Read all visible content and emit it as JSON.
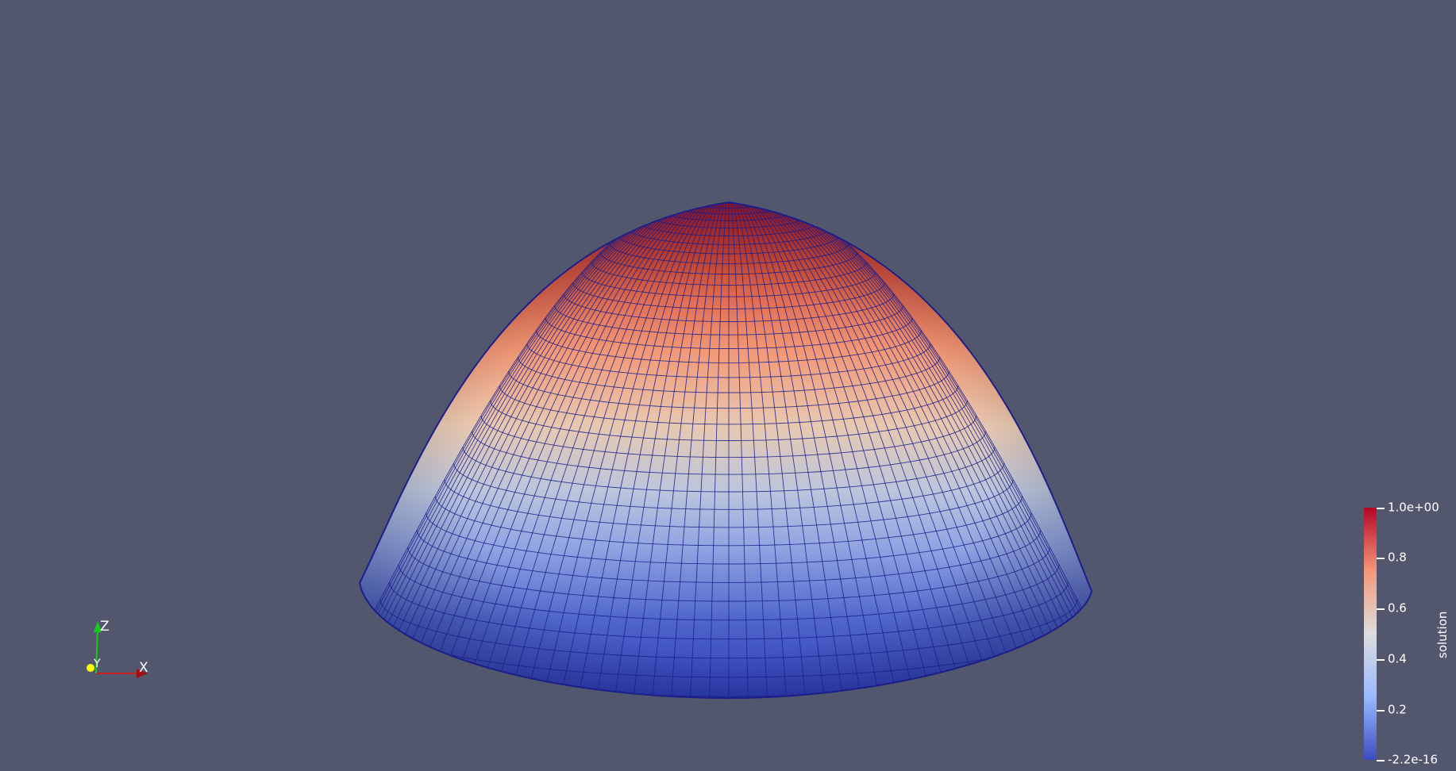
{
  "render_view": {
    "background_color": "#52576e",
    "surface_colormap": [
      "#3b4cc0",
      "#b5cdfa",
      "#dddddd",
      "#f4987a",
      "#b40426"
    ],
    "mesh_edge_color": "#1a1f8a"
  },
  "color_legend": {
    "title": "solution",
    "ticks": [
      "1.0e+00",
      "0.8",
      "0.6",
      "0.4",
      "0.2",
      "-2.2e-16"
    ],
    "range": [
      -2.2e-16,
      1.0
    ]
  },
  "orientation_axes": {
    "z_label": "Z",
    "y_label": "Y",
    "x_label": "X",
    "x_color": "#cc1f1f",
    "y_color": "#ffff00",
    "z_color": "#19c919"
  }
}
